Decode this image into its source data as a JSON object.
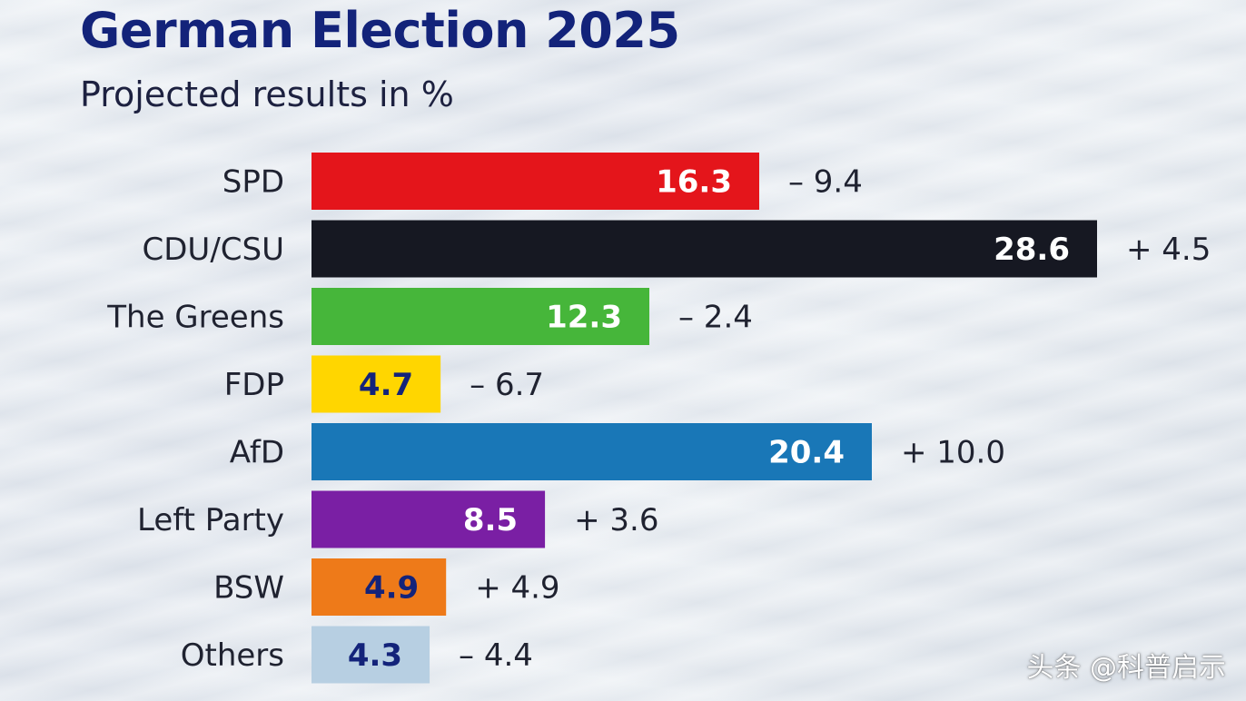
{
  "title": "German Election 2025",
  "subtitle": "Projected results in %",
  "watermark": "头条 @科普启示",
  "chart_data": {
    "type": "bar",
    "orientation": "horizontal",
    "title": "German Election 2025",
    "subtitle": "Projected results in %",
    "xlim": [
      0,
      28.6
    ],
    "grid": false,
    "legend": "none",
    "categories": [
      "SPD",
      "CDU/CSU",
      "The Greens",
      "FDP",
      "AfD",
      "Left Party",
      "BSW",
      "Others"
    ],
    "values": [
      16.3,
      28.6,
      12.3,
      4.7,
      20.4,
      8.5,
      4.9,
      4.3
    ],
    "value_labels": [
      "16.3",
      "28.6",
      "12.3",
      "4.7",
      "20.4",
      "8.5",
      "4.9",
      "4.3"
    ],
    "change_labels": [
      "– 9.4",
      "+ 4.5",
      "– 2.4",
      "– 6.7",
      "+ 10.0",
      "+ 3.6",
      "+ 4.9",
      "– 4.4"
    ],
    "changes": [
      -9.4,
      4.5,
      -2.4,
      -6.7,
      10.0,
      3.6,
      4.9,
      -4.4
    ],
    "colors": [
      "#e4151b",
      "#161822",
      "#46b63a",
      "#ffd600",
      "#1977b7",
      "#7a1fa4",
      "#ee7a19",
      "#b7cfe2"
    ],
    "value_label_colors": [
      "#ffffff",
      "#ffffff",
      "#ffffff",
      "#13237a",
      "#ffffff",
      "#ffffff",
      "#13237a",
      "#13237a"
    ]
  }
}
